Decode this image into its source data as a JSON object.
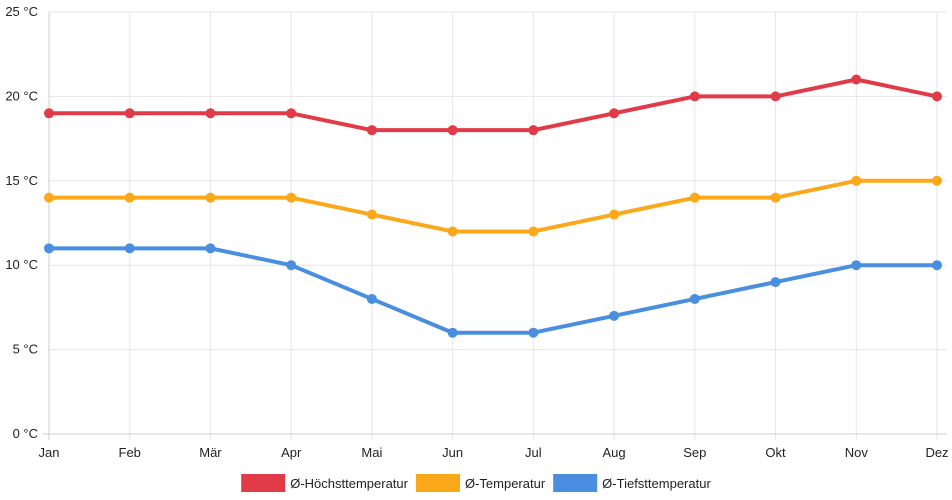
{
  "chart_data": {
    "type": "line",
    "title": "",
    "xlabel": "",
    "ylabel": "",
    "categories": [
      "Jan",
      "Feb",
      "Mär",
      "Apr",
      "Mai",
      "Jun",
      "Jul",
      "Aug",
      "Sep",
      "Okt",
      "Nov",
      "Dez"
    ],
    "ylim": [
      0,
      25
    ],
    "y_ticks": [
      0,
      5,
      10,
      15,
      20,
      25
    ],
    "y_unit": "°C",
    "grid": true,
    "legend_position": "bottom-center",
    "series": [
      {
        "name": "Ø-Höchsttemperatur",
        "color": "#e13b48",
        "values": [
          19,
          19,
          19,
          19,
          18,
          18,
          18,
          19,
          20,
          20,
          21,
          20
        ]
      },
      {
        "name": "Ø-Temperatur",
        "color": "#fba81b",
        "values": [
          14,
          14,
          14,
          14,
          13,
          12,
          12,
          13,
          14,
          14,
          15,
          15
        ]
      },
      {
        "name": "Ø-Tiefsttemperatur",
        "color": "#4a8fdf",
        "values": [
          11,
          11,
          11,
          10,
          8,
          6,
          6,
          7,
          8,
          9,
          10,
          10
        ]
      }
    ]
  }
}
